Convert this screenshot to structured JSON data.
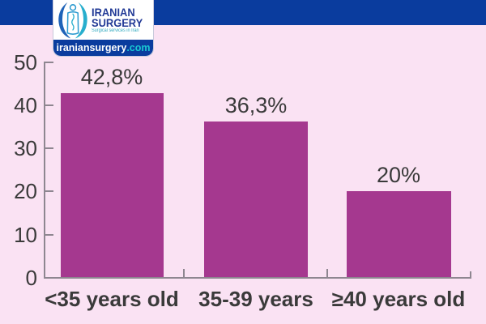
{
  "header": {
    "logo": {
      "line1": "IRANIAN",
      "line2": "SURGERY",
      "tagline": "Surgical services in Iran",
      "domain_name": "iraniansurgery",
      "domain_tld": ".com"
    }
  },
  "colors": {
    "top_band": "#0a3c9e",
    "logo_footer": "#0a3c9e",
    "background": "#fae2f3",
    "bar": "#a5388f",
    "axis": "#8e8690",
    "text": "#3a3a3a",
    "logo_wordmark": "#223a96",
    "logo_tagline": "#2fa8be",
    "domain_tld": "#19c7d2"
  },
  "chart_data": {
    "type": "bar",
    "categories": [
      "<35 years old",
      "35-39 years",
      "≥40 years old"
    ],
    "values": [
      42.8,
      36.3,
      20
    ],
    "value_labels": [
      "42,8%",
      "36,3%",
      "20%"
    ],
    "title": "",
    "xlabel": "",
    "ylabel": "",
    "ylim": [
      0,
      50
    ],
    "yticks": [
      0,
      10,
      20,
      30,
      40,
      50
    ],
    "ytick_labels": [
      "0",
      "10",
      "20",
      "30",
      "40",
      "50"
    ],
    "grid": false,
    "legend": false,
    "bar_color": "#a5388f"
  }
}
